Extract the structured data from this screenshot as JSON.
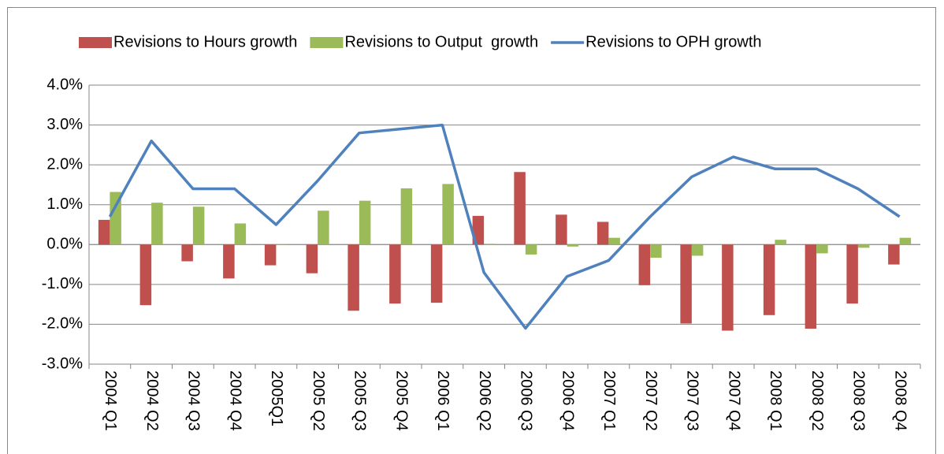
{
  "chart_data": {
    "type": "bar",
    "categories": [
      "2004 Q1",
      "2004 Q2",
      "2004 Q3",
      "2004 Q4",
      "2005Q1",
      "2005 Q2",
      "2005 Q3",
      "2005 Q4",
      "2006 Q1",
      "2006 Q2",
      "2006 Q3",
      "2006 Q4",
      "2007 Q1",
      "2007 Q2",
      "2007 Q3",
      "2007 Q4",
      "2008 Q1",
      "2008 Q2",
      "2008 Q3",
      "2008 Q4"
    ],
    "series": [
      {
        "name": "Revisions to Hours growth",
        "color": "#c0504d",
        "type": "bar",
        "values": [
          0.62,
          -1.52,
          -0.42,
          -0.85,
          -0.52,
          -0.72,
          -1.66,
          -1.48,
          -1.46,
          0.72,
          1.82,
          0.75,
          0.57,
          -1.02,
          -1.98,
          -2.16,
          -1.77,
          -2.11,
          -1.48,
          -0.5
        ]
      },
      {
        "name": "Revisions to Output  growth",
        "color": "#9bbb59",
        "type": "bar",
        "values": [
          1.32,
          1.05,
          0.95,
          0.53,
          0.01,
          0.85,
          1.1,
          1.41,
          1.52,
          0.02,
          -0.25,
          -0.05,
          0.17,
          -0.33,
          -0.28,
          0,
          0.12,
          -0.22,
          -0.08,
          0.17
        ]
      },
      {
        "name": "Revisions to OPH growth",
        "color": "#4f81bd",
        "type": "line",
        "values": [
          0.7,
          2.6,
          1.4,
          1.4,
          0.5,
          1.6,
          2.8,
          2.9,
          3.0,
          -0.7,
          -2.1,
          -0.8,
          -0.4,
          0.7,
          1.7,
          2.2,
          1.9,
          1.9,
          1.4,
          0.7
        ]
      }
    ],
    "ylim": [
      -3,
      4
    ],
    "yticks": [
      {
        "value": -3,
        "label": "-3.0%"
      },
      {
        "value": -2,
        "label": "-2.0%"
      },
      {
        "value": -1,
        "label": "-1.0%"
      },
      {
        "value": 0,
        "label": "0.0%"
      },
      {
        "value": 1,
        "label": "1.0%"
      },
      {
        "value": 2,
        "label": "2.0%"
      },
      {
        "value": 3,
        "label": "3.0%"
      },
      {
        "value": 4,
        "label": "4.0%"
      }
    ],
    "grid": true,
    "legend": "top"
  }
}
